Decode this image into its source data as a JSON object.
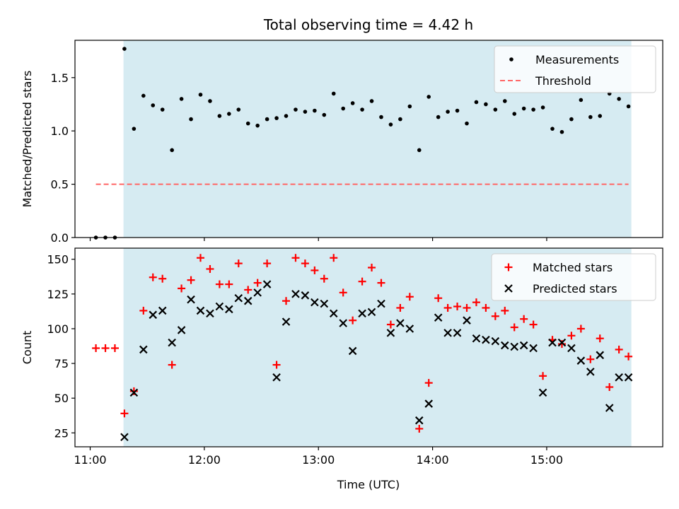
{
  "chart_data": [
    {
      "type": "scatter",
      "title": "Total observing time = 4.42 h",
      "xlabel": "",
      "ylabel": "Matched/Predicted stars",
      "xlim": [
        "10:52",
        "16:01"
      ],
      "ylim": [
        0,
        1.85
      ],
      "yticks": [
        0.0,
        0.5,
        1.0,
        1.5
      ],
      "ytick_labels": [
        "0.0",
        "0.5",
        "1.0",
        "1.5"
      ],
      "xticks": [
        "11:00",
        "12:00",
        "13:00",
        "14:00",
        "15:00"
      ],
      "xtick_labels": [],
      "grid": false,
      "legend_position": "top-right",
      "shaded_interval": {
        "start": "11:17.5",
        "end": "15:44.5",
        "color": "#add8e6"
      },
      "series": [
        {
          "name": "Measurements",
          "color": "#000000",
          "marker": "dot",
          "points": [
            [
              "11:03",
              0.0
            ],
            [
              "11:08",
              0.0
            ],
            [
              "11:13",
              0.0
            ],
            [
              "11:18",
              1.77
            ],
            [
              "11:23",
              1.02
            ],
            [
              "11:28",
              1.33
            ],
            [
              "11:33",
              1.24
            ],
            [
              "11:38",
              1.2
            ],
            [
              "11:43",
              0.82
            ],
            [
              "11:48",
              1.3
            ],
            [
              "11:53",
              1.11
            ],
            [
              "11:58",
              1.34
            ],
            [
              "12:03",
              1.28
            ],
            [
              "12:08",
              1.14
            ],
            [
              "12:13",
              1.16
            ],
            [
              "12:18",
              1.2
            ],
            [
              "12:23",
              1.07
            ],
            [
              "12:28",
              1.05
            ],
            [
              "12:33",
              1.11
            ],
            [
              "12:38",
              1.12
            ],
            [
              "12:43",
              1.14
            ],
            [
              "12:48",
              1.2
            ],
            [
              "12:53",
              1.18
            ],
            [
              "12:58",
              1.19
            ],
            [
              "13:03",
              1.15
            ],
            [
              "13:08",
              1.35
            ],
            [
              "13:13",
              1.21
            ],
            [
              "13:18",
              1.26
            ],
            [
              "13:23",
              1.2
            ],
            [
              "13:28",
              1.28
            ],
            [
              "13:33",
              1.13
            ],
            [
              "13:38",
              1.06
            ],
            [
              "13:43",
              1.11
            ],
            [
              "13:48",
              1.23
            ],
            [
              "13:53",
              0.82
            ],
            [
              "13:58",
              1.32
            ],
            [
              "14:03",
              1.13
            ],
            [
              "14:08",
              1.18
            ],
            [
              "14:13",
              1.19
            ],
            [
              "14:18",
              1.07
            ],
            [
              "14:23",
              1.27
            ],
            [
              "14:28",
              1.25
            ],
            [
              "14:33",
              1.2
            ],
            [
              "14:38",
              1.28
            ],
            [
              "14:43",
              1.16
            ],
            [
              "14:48",
              1.21
            ],
            [
              "14:53",
              1.2
            ],
            [
              "14:58",
              1.22
            ],
            [
              "15:03",
              1.02
            ],
            [
              "15:08",
              0.99
            ],
            [
              "15:13",
              1.11
            ],
            [
              "15:18",
              1.29
            ],
            [
              "15:23",
              1.13
            ],
            [
              "15:28",
              1.14
            ],
            [
              "15:33",
              1.35
            ],
            [
              "15:38",
              1.3
            ],
            [
              "15:43",
              1.23
            ]
          ]
        },
        {
          "name": "Threshold",
          "color": "#ff6666",
          "style": "dashed",
          "points": [
            [
              "11:03",
              0.5
            ],
            [
              "15:43",
              0.5
            ]
          ]
        }
      ]
    },
    {
      "type": "scatter",
      "title": "",
      "xlabel": "Time (UTC)",
      "ylabel": "Count",
      "xlim": [
        "10:52",
        "16:01"
      ],
      "ylim": [
        15,
        158
      ],
      "yticks": [
        25,
        50,
        75,
        100,
        125,
        150
      ],
      "ytick_labels": [
        "25",
        "50",
        "75",
        "100",
        "125",
        "150"
      ],
      "xticks": [
        "11:00",
        "12:00",
        "13:00",
        "14:00",
        "15:00"
      ],
      "xtick_labels": [
        "11:00",
        "12:00",
        "13:00",
        "14:00",
        "15:00"
      ],
      "grid": false,
      "legend_position": "top-right",
      "shaded_interval": {
        "start": "11:17.5",
        "end": "15:44.5",
        "color": "#add8e6"
      },
      "series": [
        {
          "name": "Matched stars",
          "color": "#ff0000",
          "marker": "plus",
          "points": [
            [
              "11:03",
              86
            ],
            [
              "11:08",
              86
            ],
            [
              "11:13",
              86
            ],
            [
              "11:18",
              39
            ],
            [
              "11:23",
              55
            ],
            [
              "11:28",
              113
            ],
            [
              "11:33",
              137
            ],
            [
              "11:38",
              136
            ],
            [
              "11:43",
              74
            ],
            [
              "11:48",
              129
            ],
            [
              "11:53",
              135
            ],
            [
              "11:58",
              151
            ],
            [
              "12:03",
              143
            ],
            [
              "12:08",
              132
            ],
            [
              "12:13",
              132
            ],
            [
              "12:18",
              147
            ],
            [
              "12:23",
              128
            ],
            [
              "12:28",
              133
            ],
            [
              "12:33",
              147
            ],
            [
              "12:38",
              74
            ],
            [
              "12:43",
              120
            ],
            [
              "12:48",
              151
            ],
            [
              "12:53",
              147
            ],
            [
              "12:58",
              142
            ],
            [
              "13:03",
              136
            ],
            [
              "13:08",
              151
            ],
            [
              "13:13",
              126
            ],
            [
              "13:18",
              106
            ],
            [
              "13:23",
              134
            ],
            [
              "13:28",
              144
            ],
            [
              "13:33",
              133
            ],
            [
              "13:38",
              103
            ],
            [
              "13:43",
              115
            ],
            [
              "13:48",
              123
            ],
            [
              "13:53",
              28
            ],
            [
              "13:58",
              61
            ],
            [
              "14:03",
              122
            ],
            [
              "14:08",
              115
            ],
            [
              "14:13",
              116
            ],
            [
              "14:18",
              115
            ],
            [
              "14:23",
              119
            ],
            [
              "14:28",
              115
            ],
            [
              "14:33",
              109
            ],
            [
              "14:38",
              113
            ],
            [
              "14:43",
              101
            ],
            [
              "14:48",
              107
            ],
            [
              "14:53",
              103
            ],
            [
              "14:58",
              66
            ],
            [
              "15:03",
              92
            ],
            [
              "15:08",
              89
            ],
            [
              "15:13",
              95
            ],
            [
              "15:18",
              100
            ],
            [
              "15:23",
              78
            ],
            [
              "15:28",
              93
            ],
            [
              "15:33",
              58
            ],
            [
              "15:38",
              85
            ],
            [
              "15:43",
              80
            ]
          ]
        },
        {
          "name": "Predicted stars",
          "color": "#000000",
          "marker": "x",
          "points": [
            [
              "11:18",
              22
            ],
            [
              "11:23",
              54
            ],
            [
              "11:28",
              85
            ],
            [
              "11:33",
              110
            ],
            [
              "11:38",
              113
            ],
            [
              "11:43",
              90
            ],
            [
              "11:48",
              99
            ],
            [
              "11:53",
              121
            ],
            [
              "11:58",
              113
            ],
            [
              "12:03",
              111
            ],
            [
              "12:08",
              116
            ],
            [
              "12:13",
              114
            ],
            [
              "12:18",
              122
            ],
            [
              "12:23",
              120
            ],
            [
              "12:28",
              126
            ],
            [
              "12:33",
              132
            ],
            [
              "12:38",
              65
            ],
            [
              "12:43",
              105
            ],
            [
              "12:48",
              125
            ],
            [
              "12:53",
              124
            ],
            [
              "12:58",
              119
            ],
            [
              "13:03",
              118
            ],
            [
              "13:08",
              111
            ],
            [
              "13:13",
              104
            ],
            [
              "13:18",
              84
            ],
            [
              "13:23",
              111
            ],
            [
              "13:28",
              112
            ],
            [
              "13:33",
              118
            ],
            [
              "13:38",
              97
            ],
            [
              "13:43",
              104
            ],
            [
              "13:48",
              100
            ],
            [
              "13:53",
              34
            ],
            [
              "13:58",
              46
            ],
            [
              "14:03",
              108
            ],
            [
              "14:08",
              97
            ],
            [
              "14:13",
              97
            ],
            [
              "14:18",
              106
            ],
            [
              "14:23",
              93
            ],
            [
              "14:28",
              92
            ],
            [
              "14:33",
              91
            ],
            [
              "14:38",
              88
            ],
            [
              "14:43",
              87
            ],
            [
              "14:48",
              88
            ],
            [
              "14:53",
              86
            ],
            [
              "14:58",
              54
            ],
            [
              "15:03",
              90
            ],
            [
              "15:08",
              90
            ],
            [
              "15:13",
              86
            ],
            [
              "15:18",
              77
            ],
            [
              "15:23",
              69
            ],
            [
              "15:28",
              81
            ],
            [
              "15:33",
              43
            ],
            [
              "15:38",
              65
            ],
            [
              "15:43",
              65
            ]
          ]
        }
      ]
    }
  ]
}
